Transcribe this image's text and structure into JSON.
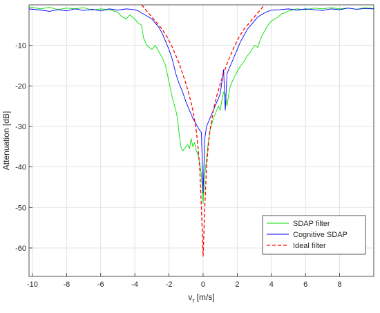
{
  "chart_data": {
    "type": "line",
    "title": "",
    "xlabel": "v",
    "xlabel_sub": "r",
    "xlabel_unit": " [m/s]",
    "ylabel": "Attenuation [dB]",
    "xlim": [
      -10.2,
      10
    ],
    "ylim": [
      -67,
      0
    ],
    "grid": true,
    "xticks": [
      -10,
      -8,
      -6,
      -4,
      -2,
      0,
      2,
      4,
      6,
      8
    ],
    "xtick_labels": [
      "-10",
      "-8",
      "-6",
      "-4",
      "-2",
      "0",
      "2",
      "4",
      "6",
      "8"
    ],
    "yticks": [
      -10,
      -20,
      -30,
      -40,
      -50,
      -60
    ],
    "ytick_labels": [
      "-10",
      "-20",
      "-30",
      "-40",
      "-50",
      "-60"
    ],
    "legend_position": "bottom-right",
    "series": [
      {
        "name": "SDAP filter",
        "color": "#00e000",
        "style": "solid",
        "x": [
          -10.2,
          -9.5,
          -9.0,
          -8.5,
          -8.0,
          -7.5,
          -7.0,
          -6.5,
          -6.0,
          -5.5,
          -5.0,
          -4.8,
          -4.5,
          -4.3,
          -4.0,
          -3.8,
          -3.6,
          -3.5,
          -3.3,
          -3.0,
          -2.8,
          -2.6,
          -2.4,
          -2.2,
          -2.0,
          -1.9,
          -1.8,
          -1.6,
          -1.5,
          -1.4,
          -1.3,
          -1.2,
          -1.1,
          -1.0,
          -0.9,
          -0.8,
          -0.7,
          -0.6,
          -0.5,
          -0.4,
          -0.3,
          -0.2,
          -0.1,
          0.0,
          0.1,
          0.2,
          0.3,
          0.4,
          0.5,
          0.6,
          0.7,
          0.8,
          0.9,
          1.0,
          1.1,
          1.2,
          1.3,
          1.4,
          1.5,
          1.6,
          1.8,
          2.0,
          2.2,
          2.4,
          2.6,
          2.8,
          3.0,
          3.2,
          3.4,
          3.6,
          3.8,
          4.0,
          4.2,
          4.4,
          4.6,
          4.8,
          5.0,
          5.5,
          6.0,
          6.5,
          7.0,
          7.5,
          8.0,
          8.5,
          9.0,
          9.5,
          10.0
        ],
        "y": [
          -0.5,
          -1.0,
          -0.6,
          -1.2,
          -0.8,
          -1.0,
          -0.7,
          -1.3,
          -1.0,
          -1.2,
          -1.8,
          -2.8,
          -3.5,
          -2.5,
          -3.5,
          -4.5,
          -5.0,
          -8.0,
          -10.0,
          -11.0,
          -10.0,
          -11.5,
          -13.0,
          -15.0,
          -19.0,
          -21.0,
          -23.0,
          -26.0,
          -28.0,
          -32.0,
          -35.0,
          -36.0,
          -35.5,
          -35.0,
          -34.5,
          -35.5,
          -33.0,
          -35.0,
          -34.0,
          -36.0,
          -37.0,
          -39.0,
          -42.0,
          -49.0,
          -42.0,
          -38.0,
          -34.0,
          -31.0,
          -29.5,
          -28.0,
          -27.0,
          -26.0,
          -25.0,
          -26.0,
          -23.5,
          -21.5,
          -22.0,
          -25.0,
          -22.0,
          -20.0,
          -18.0,
          -16.5,
          -15.0,
          -14.0,
          -12.5,
          -11.5,
          -10.0,
          -10.5,
          -8.0,
          -6.5,
          -5.0,
          -4.0,
          -3.5,
          -3.0,
          -2.2,
          -2.0,
          -1.5,
          -1.0,
          -1.2,
          -0.8,
          -1.0,
          -0.7,
          -1.0,
          -0.8,
          -1.1,
          -0.7,
          -0.9
        ]
      },
      {
        "name": "Cognitive SDAP",
        "color": "#0000ff",
        "style": "solid",
        "x": [
          -10.2,
          -9.5,
          -9.0,
          -8.5,
          -8.0,
          -7.5,
          -7.0,
          -6.5,
          -6.0,
          -5.5,
          -5.0,
          -4.5,
          -4.0,
          -3.8,
          -3.6,
          -3.4,
          -3.2,
          -3.0,
          -2.8,
          -2.6,
          -2.4,
          -2.2,
          -2.0,
          -1.8,
          -1.6,
          -1.4,
          -1.2,
          -1.0,
          -0.8,
          -0.6,
          -0.4,
          -0.2,
          -0.1,
          0.0,
          0.1,
          0.2,
          0.4,
          0.6,
          0.8,
          1.0,
          1.1,
          1.2,
          1.3,
          1.4,
          1.6,
          1.8,
          2.0,
          2.2,
          2.4,
          2.6,
          2.8,
          3.0,
          3.2,
          3.4,
          3.6,
          3.8,
          4.0,
          4.5,
          5.0,
          5.5,
          6.0,
          6.5,
          7.0,
          7.5,
          8.0,
          8.5,
          9.0,
          9.5,
          10.0
        ],
        "y": [
          -1.0,
          -1.3,
          -1.6,
          -1.2,
          -1.5,
          -1.0,
          -1.4,
          -1.1,
          -1.5,
          -1.0,
          -1.3,
          -1.0,
          -1.2,
          -1.5,
          -2.0,
          -2.5,
          -3.0,
          -3.5,
          -4.5,
          -5.5,
          -7.0,
          -9.0,
          -11.0,
          -13.5,
          -17.0,
          -19.5,
          -21.5,
          -24.0,
          -26.0,
          -28.0,
          -29.5,
          -31.0,
          -31.5,
          -46.5,
          -33.0,
          -30.0,
          -28.0,
          -26.0,
          -24.0,
          -22.0,
          -19.0,
          -16.0,
          -26.0,
          -17.0,
          -15.0,
          -13.0,
          -11.0,
          -9.0,
          -7.5,
          -6.0,
          -5.0,
          -4.0,
          -3.0,
          -2.5,
          -2.0,
          -1.6,
          -1.3,
          -1.2,
          -1.0,
          -1.3,
          -1.0,
          -1.2,
          -1.4,
          -1.0,
          -1.2,
          -0.8,
          -1.1,
          -0.9,
          -1.0
        ]
      },
      {
        "name": "Ideal filter",
        "color": "#ff0000",
        "style": "dashed",
        "x": [
          -3.6,
          -3.3,
          -3.0,
          -2.7,
          -2.4,
          -2.1,
          -1.8,
          -1.6,
          -1.4,
          -1.2,
          -1.0,
          -0.8,
          -0.6,
          -0.4,
          -0.3,
          -0.2,
          -0.1,
          0.0,
          0.1,
          0.2,
          0.3,
          0.4,
          0.6,
          0.8,
          1.0,
          1.2,
          1.4,
          1.6,
          1.8,
          2.1,
          2.4,
          2.7,
          3.0,
          3.3,
          3.6
        ],
        "y": [
          0.0,
          -1.5,
          -3.0,
          -4.5,
          -6.0,
          -8.0,
          -10.5,
          -12.5,
          -14.5,
          -17.0,
          -19.5,
          -22.5,
          -26.0,
          -31.0,
          -35.0,
          -40.0,
          -50.0,
          -62.0,
          -50.0,
          -40.0,
          -35.0,
          -31.0,
          -26.0,
          -22.5,
          -19.5,
          -17.0,
          -14.5,
          -12.5,
          -10.5,
          -8.0,
          -6.0,
          -4.5,
          -3.0,
          -1.5,
          0.0
        ]
      }
    ]
  }
}
